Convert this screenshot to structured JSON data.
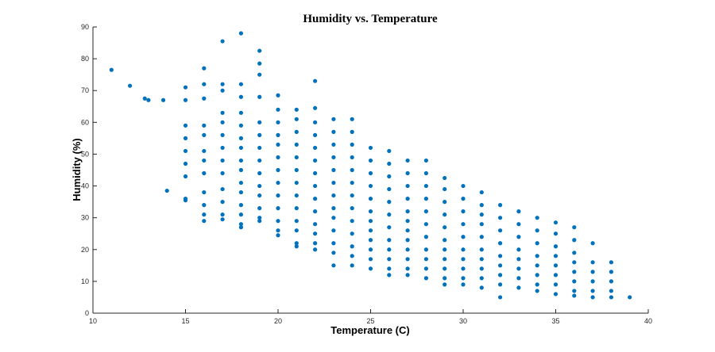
{
  "chart_data": {
    "type": "scatter",
    "title": "Humidity vs. Temperature",
    "xlabel": "Temperature (C)",
    "ylabel": "Humidity (%)",
    "xlim": [
      10,
      40
    ],
    "ylim": [
      0,
      90
    ],
    "xticks": [
      "10",
      "15",
      "20",
      "25",
      "30",
      "35",
      "40"
    ],
    "yticks": [
      "0",
      "10",
      "20",
      "30",
      "40",
      "50",
      "60",
      "70",
      "80",
      "90"
    ],
    "grid": false,
    "marker_color": "#0072BD",
    "series": [
      {
        "points": [
          [
            11,
            76.5
          ],
          [
            12,
            71.5
          ],
          [
            12.8,
            67.5
          ],
          [
            13,
            67
          ],
          [
            13.8,
            67
          ],
          [
            14,
            38.5
          ],
          [
            15,
            71
          ],
          [
            15,
            67
          ],
          [
            15,
            59
          ],
          [
            15,
            55
          ],
          [
            15,
            51
          ],
          [
            15,
            47
          ],
          [
            15,
            43
          ],
          [
            15,
            36
          ],
          [
            15,
            35.5
          ],
          [
            16,
            77
          ],
          [
            16,
            72
          ],
          [
            16,
            67.5
          ],
          [
            16,
            59
          ],
          [
            16,
            56
          ],
          [
            16,
            51
          ],
          [
            16,
            48
          ],
          [
            16,
            44
          ],
          [
            16,
            38
          ],
          [
            16,
            34
          ],
          [
            16,
            31
          ],
          [
            16,
            29
          ],
          [
            17,
            85.5
          ],
          [
            17,
            72
          ],
          [
            17,
            70
          ],
          [
            17,
            63
          ],
          [
            17,
            60
          ],
          [
            17,
            56
          ],
          [
            17,
            52
          ],
          [
            17,
            48
          ],
          [
            17,
            44
          ],
          [
            17,
            39
          ],
          [
            17,
            35
          ],
          [
            17,
            31
          ],
          [
            17,
            29.5
          ],
          [
            18,
            88
          ],
          [
            18,
            72
          ],
          [
            18,
            68
          ],
          [
            18,
            63
          ],
          [
            18,
            59
          ],
          [
            18,
            55
          ],
          [
            18,
            52
          ],
          [
            18,
            48
          ],
          [
            18,
            45
          ],
          [
            18,
            41
          ],
          [
            18,
            38
          ],
          [
            18,
            34
          ],
          [
            18,
            31
          ],
          [
            18,
            28
          ],
          [
            18,
            27
          ],
          [
            19,
            82.5
          ],
          [
            19,
            78.5
          ],
          [
            19,
            75
          ],
          [
            19,
            68
          ],
          [
            19,
            60
          ],
          [
            19,
            56
          ],
          [
            19,
            52
          ],
          [
            19,
            48
          ],
          [
            19,
            44
          ],
          [
            19,
            40
          ],
          [
            19,
            37
          ],
          [
            19,
            33
          ],
          [
            19,
            30
          ],
          [
            19,
            29
          ],
          [
            20,
            68.5
          ],
          [
            20,
            64
          ],
          [
            20,
            60
          ],
          [
            20,
            56
          ],
          [
            20,
            53
          ],
          [
            20,
            49
          ],
          [
            20,
            45
          ],
          [
            20,
            41
          ],
          [
            20,
            37
          ],
          [
            20,
            33
          ],
          [
            20,
            29
          ],
          [
            20,
            26
          ],
          [
            20,
            24.5
          ],
          [
            21,
            64
          ],
          [
            21,
            61
          ],
          [
            21,
            57
          ],
          [
            21,
            53
          ],
          [
            21,
            49
          ],
          [
            21,
            45
          ],
          [
            21,
            41
          ],
          [
            21,
            37
          ],
          [
            21,
            33
          ],
          [
            21,
            29
          ],
          [
            21,
            26
          ],
          [
            21,
            22
          ],
          [
            21,
            21
          ],
          [
            22,
            73
          ],
          [
            22,
            64.5
          ],
          [
            22,
            60
          ],
          [
            22,
            56
          ],
          [
            22,
            52
          ],
          [
            22,
            48
          ],
          [
            22,
            44
          ],
          [
            22,
            40
          ],
          [
            22,
            36
          ],
          [
            22,
            32
          ],
          [
            22,
            28
          ],
          [
            22,
            25
          ],
          [
            22,
            22
          ],
          [
            22,
            20
          ],
          [
            23,
            61
          ],
          [
            23,
            57
          ],
          [
            23,
            53
          ],
          [
            23,
            49
          ],
          [
            23,
            45
          ],
          [
            23,
            41
          ],
          [
            23,
            37
          ],
          [
            23,
            33
          ],
          [
            23,
            30
          ],
          [
            23,
            26
          ],
          [
            23,
            22
          ],
          [
            23,
            19
          ],
          [
            23,
            15
          ],
          [
            24,
            61
          ],
          [
            24,
            57
          ],
          [
            24,
            53
          ],
          [
            24,
            49
          ],
          [
            24,
            45
          ],
          [
            24,
            41
          ],
          [
            24,
            37
          ],
          [
            24,
            33
          ],
          [
            24,
            29
          ],
          [
            24,
            25
          ],
          [
            24,
            21
          ],
          [
            24,
            18
          ],
          [
            24,
            15
          ],
          [
            25,
            52
          ],
          [
            25,
            48
          ],
          [
            25,
            44
          ],
          [
            25,
            40
          ],
          [
            25,
            36
          ],
          [
            25,
            32
          ],
          [
            25,
            29
          ],
          [
            25,
            26
          ],
          [
            25,
            23
          ],
          [
            25,
            20
          ],
          [
            25,
            17
          ],
          [
            25,
            14
          ],
          [
            26,
            51
          ],
          [
            26,
            47
          ],
          [
            26,
            43
          ],
          [
            26,
            39
          ],
          [
            26,
            35
          ],
          [
            26,
            31
          ],
          [
            26,
            27
          ],
          [
            26,
            23
          ],
          [
            26,
            20
          ],
          [
            26,
            17
          ],
          [
            26,
            14
          ],
          [
            26,
            12
          ],
          [
            27,
            48
          ],
          [
            27,
            44
          ],
          [
            27,
            40
          ],
          [
            27,
            36
          ],
          [
            27,
            32
          ],
          [
            27,
            29
          ],
          [
            27,
            26
          ],
          [
            27,
            23
          ],
          [
            27,
            20
          ],
          [
            27,
            17
          ],
          [
            27,
            14
          ],
          [
            27,
            12
          ],
          [
            28,
            48
          ],
          [
            28,
            44
          ],
          [
            28,
            40
          ],
          [
            28,
            36
          ],
          [
            28,
            32
          ],
          [
            28,
            28
          ],
          [
            28,
            24
          ],
          [
            28,
            20
          ],
          [
            28,
            17
          ],
          [
            28,
            14
          ],
          [
            28,
            11
          ],
          [
            29,
            42.5
          ],
          [
            29,
            39
          ],
          [
            29,
            35
          ],
          [
            29,
            31
          ],
          [
            29,
            27
          ],
          [
            29,
            23
          ],
          [
            29,
            20
          ],
          [
            29,
            17
          ],
          [
            29,
            14
          ],
          [
            29,
            11
          ],
          [
            29,
            9
          ],
          [
            30,
            40
          ],
          [
            30,
            36
          ],
          [
            30,
            32
          ],
          [
            30,
            28
          ],
          [
            30,
            24
          ],
          [
            30,
            20
          ],
          [
            30,
            17
          ],
          [
            30,
            14
          ],
          [
            30,
            11
          ],
          [
            30,
            9
          ],
          [
            31,
            38
          ],
          [
            31,
            34
          ],
          [
            31,
            31
          ],
          [
            31,
            28
          ],
          [
            31,
            24
          ],
          [
            31,
            20
          ],
          [
            31,
            17
          ],
          [
            31,
            14
          ],
          [
            31,
            11
          ],
          [
            31,
            8
          ],
          [
            32,
            34
          ],
          [
            32,
            30
          ],
          [
            32,
            26
          ],
          [
            32,
            22
          ],
          [
            32,
            18
          ],
          [
            32,
            15
          ],
          [
            32,
            12
          ],
          [
            32,
            9
          ],
          [
            32,
            5
          ],
          [
            33,
            32
          ],
          [
            33,
            28
          ],
          [
            33,
            24
          ],
          [
            33,
            20
          ],
          [
            33,
            17
          ],
          [
            33,
            14
          ],
          [
            33,
            11
          ],
          [
            33,
            8
          ],
          [
            34,
            30
          ],
          [
            34,
            26
          ],
          [
            34,
            22
          ],
          [
            34,
            18
          ],
          [
            34,
            15
          ],
          [
            34,
            12
          ],
          [
            34,
            9
          ],
          [
            34,
            7
          ],
          [
            35,
            28.5
          ],
          [
            35,
            25
          ],
          [
            35,
            21
          ],
          [
            35,
            18
          ],
          [
            35,
            15
          ],
          [
            35,
            12
          ],
          [
            35,
            9
          ],
          [
            35,
            6
          ],
          [
            36,
            27
          ],
          [
            36,
            23
          ],
          [
            36,
            19
          ],
          [
            36,
            16
          ],
          [
            36,
            13
          ],
          [
            36,
            10
          ],
          [
            36,
            7
          ],
          [
            36,
            5.5
          ],
          [
            37,
            22
          ],
          [
            37,
            16
          ],
          [
            37,
            13
          ],
          [
            37,
            10
          ],
          [
            37,
            7
          ],
          [
            37,
            5
          ],
          [
            38,
            16
          ],
          [
            38,
            13
          ],
          [
            38,
            10
          ],
          [
            38,
            7
          ],
          [
            38,
            5
          ],
          [
            39,
            5
          ]
        ]
      }
    ]
  }
}
